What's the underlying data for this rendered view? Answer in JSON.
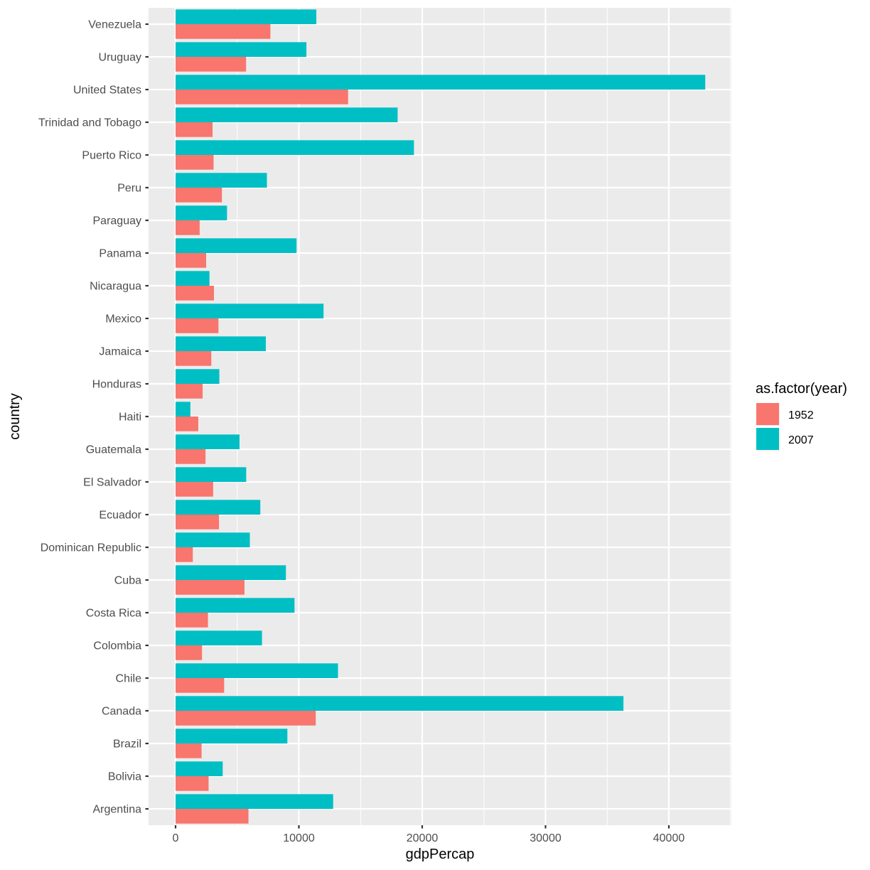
{
  "chart_data": {
    "type": "bar",
    "orientation": "horizontal",
    "title": "",
    "xlabel": "gdpPercap",
    "ylabel": "country",
    "xlim": [
      -2150,
      45100
    ],
    "x_ticks": [
      0,
      10000,
      20000,
      30000,
      40000
    ],
    "x_tick_labels": [
      "0",
      "10000",
      "20000",
      "30000",
      "40000"
    ],
    "grid": true,
    "legend": {
      "title": "as.factor(year)",
      "position": "right",
      "entries": [
        {
          "label": "1952",
          "color": "#F8766D"
        },
        {
          "label": "2007",
          "color": "#00BFC4"
        }
      ]
    },
    "categories": [
      "Argentina",
      "Bolivia",
      "Brazil",
      "Canada",
      "Chile",
      "Colombia",
      "Costa Rica",
      "Cuba",
      "Dominican Republic",
      "Ecuador",
      "El Salvador",
      "Guatemala",
      "Haiti",
      "Honduras",
      "Jamaica",
      "Mexico",
      "Nicaragua",
      "Panama",
      "Paraguay",
      "Peru",
      "Puerto Rico",
      "Trinidad and Tobago",
      "United States",
      "Uruguay",
      "Venezuela"
    ],
    "series": [
      {
        "name": "1952",
        "color": "#F8766D",
        "values": [
          5911,
          2677,
          2108,
          11367,
          3940,
          2144,
          2627,
          5587,
          1398,
          3522,
          3048,
          2428,
          1840,
          2195,
          2898,
          3478,
          3112,
          2480,
          1953,
          3759,
          3082,
          3000,
          13990,
          5717,
          7690
        ]
      },
      {
        "name": "2007",
        "color": "#00BFC4",
        "values": [
          12779,
          3822,
          9066,
          36319,
          13172,
          7007,
          9645,
          8948,
          6025,
          6873,
          5728,
          5186,
          1202,
          3548,
          7321,
          12000,
          2749,
          9809,
          4173,
          7408,
          19329,
          18008,
          42952,
          10611,
          11415
        ]
      }
    ]
  },
  "colors": {
    "panel_background": "#EBEBEB",
    "grid_major": "#FFFFFF",
    "axis_text": "#4D4D4D",
    "tick_mark": "#333333"
  }
}
